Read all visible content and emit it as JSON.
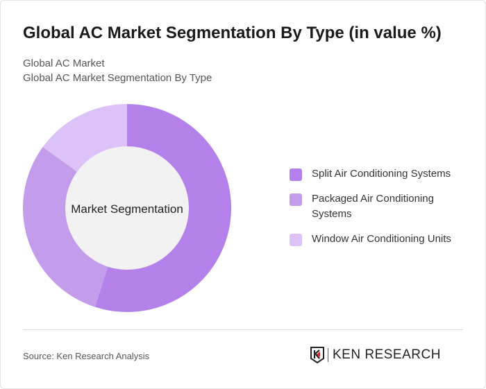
{
  "header": {
    "title": "Global AC Market Segmentation By Type (in value %)",
    "subtitle1": "Global AC Market",
    "subtitle2": "Global AC Market Segmentation By Type"
  },
  "chart_data": {
    "type": "pie",
    "variant": "donut",
    "center_label": "Market Segmentation",
    "categories": [
      "Split Air Conditioning Systems",
      "Packaged Air Conditioning Systems",
      "Window Air Conditioning Units"
    ],
    "values": [
      55,
      30,
      15
    ],
    "unit": "%",
    "colors": [
      "#b481ea",
      "#c49cec",
      "#dcc2f6"
    ],
    "legend_position": "right"
  },
  "footer": {
    "source": "Source: Ken Research Analysis",
    "logo_text": "KEN RESEARCH"
  }
}
